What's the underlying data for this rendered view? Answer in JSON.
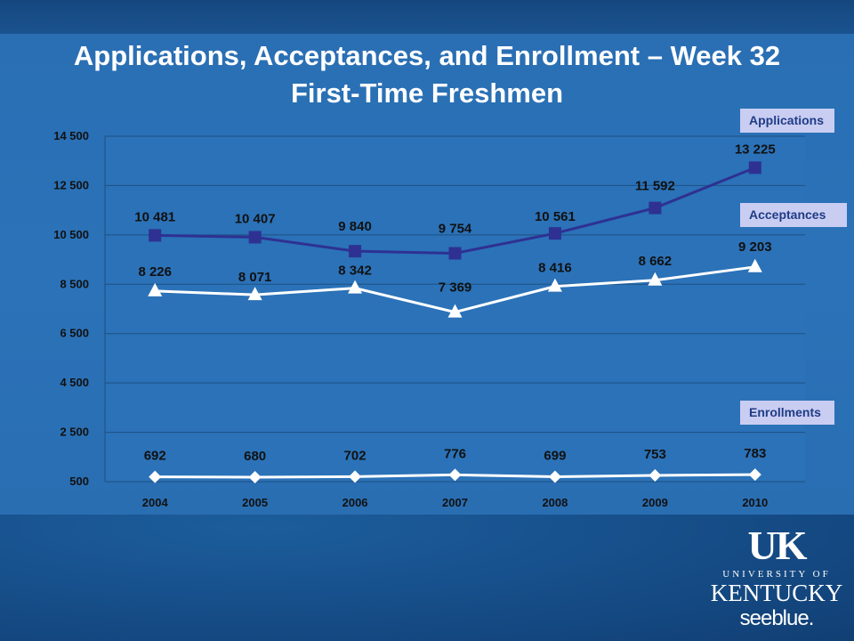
{
  "title_line1": "Applications, Acceptances, and Enrollment – Week 32",
  "title_line2": "First-Time Freshmen",
  "legend": {
    "applications": "Applications",
    "acceptances": "Acceptances",
    "enrollments": "Enrollments"
  },
  "logo": {
    "uk": "UK",
    "university_of": "UNIVERSITY OF",
    "kentucky": "KENTUCKY",
    "tagline": "seeblue."
  },
  "colors": {
    "applications": "#2e3192",
    "acceptances": "#ffffff",
    "enrollments": "#ffffff",
    "plot_background": "#2b72b8",
    "gridline": "#1f4f82"
  },
  "chart_data": {
    "type": "line",
    "categories": [
      "2004",
      "2005",
      "2006",
      "2007",
      "2008",
      "2009",
      "2010"
    ],
    "y_ticks": [
      "14 500",
      "12 500",
      "10 500",
      "8 500",
      "6 500",
      "4 500",
      "2 500",
      "500"
    ],
    "ylim": [
      500,
      14500
    ],
    "grid": true,
    "legend_position": "right",
    "series": [
      {
        "name": "Applications",
        "marker": "square",
        "values": [
          10481,
          10407,
          9840,
          9754,
          10561,
          11592,
          13225
        ],
        "labels": [
          "10 481",
          "10 407",
          "9 840",
          "9 754",
          "10 561",
          "11 592",
          "13 225"
        ]
      },
      {
        "name": "Acceptances",
        "marker": "triangle",
        "values": [
          8226,
          8071,
          8342,
          7369,
          8416,
          8662,
          9203
        ],
        "labels": [
          "8 226",
          "8 071",
          "8 342",
          "7 369",
          "8 416",
          "8 662",
          "9 203"
        ]
      },
      {
        "name": "Enrollments",
        "marker": "diamond",
        "values": [
          692,
          680,
          702,
          776,
          699,
          753,
          783
        ],
        "labels": [
          "692",
          "680",
          "702",
          "776",
          "699",
          "753",
          "783"
        ]
      }
    ]
  }
}
